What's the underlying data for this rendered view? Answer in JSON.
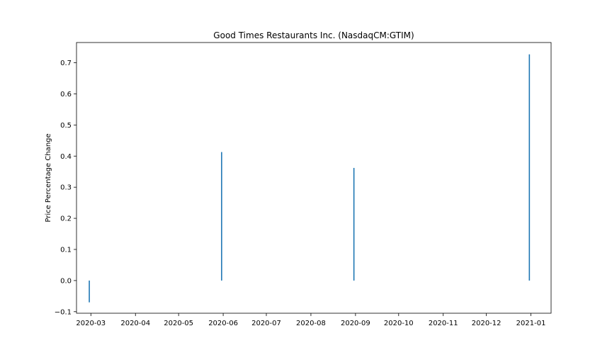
{
  "chart_data": {
    "type": "bar",
    "title": "Good Times Restaurants Inc. (NasdaqCM:GTIM)",
    "xlabel": "",
    "ylabel": "Price Percentage Change",
    "x_ticks": [
      "2020-03",
      "2020-04",
      "2020-05",
      "2020-06",
      "2020-07",
      "2020-08",
      "2020-09",
      "2020-10",
      "2020-11",
      "2020-12",
      "2021-01"
    ],
    "y_ticks": [
      "−0.1",
      "0.0",
      "0.1",
      "0.2",
      "0.3",
      "0.4",
      "0.5",
      "0.6",
      "0.7"
    ],
    "x_range": [
      "2020-02-20",
      "2021-01-15"
    ],
    "ylim": [
      -0.105,
      0.765
    ],
    "grid": false,
    "color": "#1f77b4",
    "series": [
      {
        "x": [
          "2020-02-29",
          "2020-05-31",
          "2020-08-31",
          "2020-12-31"
        ],
        "values": [
          -0.07,
          0.413,
          0.362,
          0.727
        ]
      }
    ]
  }
}
